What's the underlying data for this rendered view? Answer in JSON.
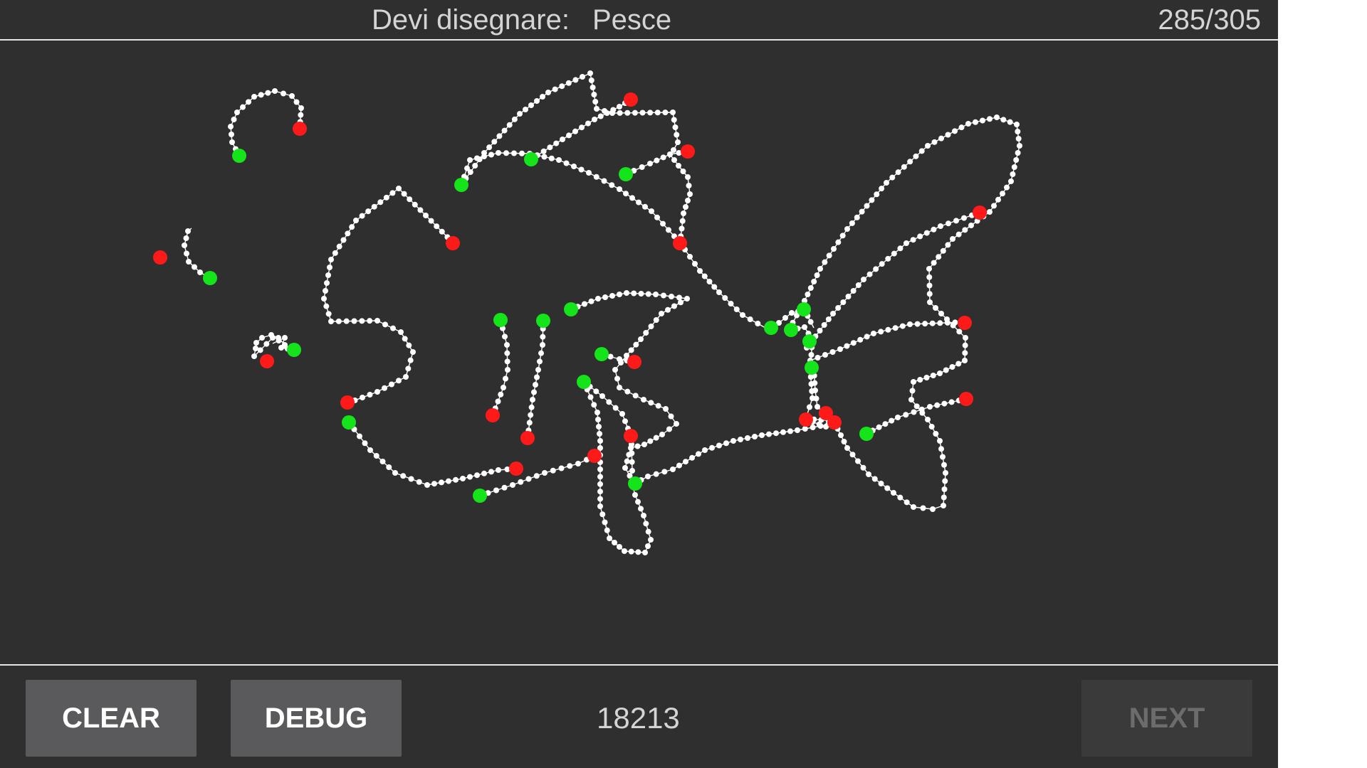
{
  "header": {
    "prompt_label": "Devi disegnare:",
    "prompt_word": "Pesce",
    "progress_text": "285/305"
  },
  "footer": {
    "clear_label": "CLEAR",
    "debug_label": "DEBUG",
    "score_text": "18213",
    "next_label": "NEXT",
    "next_enabled": false
  },
  "colors": {
    "background": "#2f2f2f",
    "stroke": "#ffffff",
    "start_point": "#16e41a",
    "end_point": "#ff1a1a",
    "button": "#5a5a5c",
    "button_disabled": "#3a3a3b"
  }
}
